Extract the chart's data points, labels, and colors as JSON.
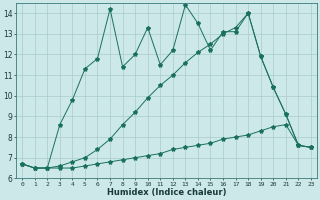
{
  "xlabel": "Humidex (Indice chaleur)",
  "bg_color": "#cce8e8",
  "grid_color": "#aacccc",
  "line_color": "#1a7060",
  "xlim": [
    -0.5,
    23.5
  ],
  "ylim": [
    6,
    14.5
  ],
  "yticks": [
    6,
    7,
    8,
    9,
    10,
    11,
    12,
    13,
    14
  ],
  "xticks": [
    0,
    1,
    2,
    3,
    4,
    5,
    6,
    7,
    8,
    9,
    10,
    11,
    12,
    13,
    14,
    15,
    16,
    17,
    18,
    19,
    20,
    21,
    22,
    23
  ],
  "series1_x": [
    0,
    1,
    2,
    3,
    4,
    5,
    6,
    7,
    8,
    9,
    10,
    11,
    12,
    13,
    14,
    15,
    16,
    17,
    18,
    19,
    20,
    21,
    22,
    23
  ],
  "series1_y": [
    6.7,
    6.5,
    6.5,
    6.5,
    6.5,
    6.6,
    6.7,
    6.8,
    6.9,
    7.0,
    7.1,
    7.2,
    7.4,
    7.5,
    7.6,
    7.7,
    7.9,
    8.0,
    8.1,
    8.3,
    8.5,
    8.6,
    7.6,
    7.5
  ],
  "series2_x": [
    0,
    1,
    2,
    3,
    4,
    5,
    6,
    7,
    8,
    9,
    10,
    11,
    12,
    13,
    14,
    15,
    16,
    17,
    18,
    19,
    20,
    21,
    22,
    23
  ],
  "series2_y": [
    6.7,
    6.5,
    6.5,
    6.6,
    6.8,
    7.0,
    7.4,
    7.9,
    8.6,
    9.2,
    9.9,
    10.5,
    11.0,
    11.6,
    12.1,
    12.5,
    13.0,
    13.3,
    14.0,
    11.9,
    10.4,
    9.1,
    7.6,
    7.5
  ],
  "series3_x": [
    0,
    1,
    2,
    3,
    4,
    5,
    6,
    7,
    8,
    9,
    10,
    11,
    12,
    13,
    14,
    15,
    16,
    17,
    18,
    19,
    20,
    21,
    22,
    23
  ],
  "series3_y": [
    6.7,
    6.5,
    6.5,
    8.6,
    9.8,
    11.3,
    11.8,
    14.2,
    11.4,
    12.0,
    13.3,
    11.5,
    12.2,
    14.4,
    13.5,
    12.2,
    13.1,
    13.1,
    14.0,
    11.9,
    10.4,
    9.1,
    7.6,
    7.5
  ]
}
